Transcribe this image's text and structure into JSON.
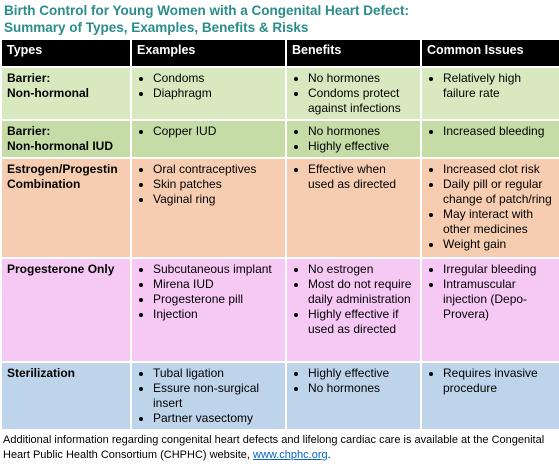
{
  "header": {
    "title": [
      "Birth Control for Young Women with a Congenital Heart Defect:",
      "Summary of Types, Examples, Benefits & Risks"
    ]
  },
  "table": {
    "columns": [
      "Types",
      "Examples",
      "Benefits",
      "Common Issues"
    ],
    "rows": [
      {
        "type": [
          "Barrier:",
          "Non-hormonal"
        ],
        "examples": [
          "Condoms",
          "Diaphragm"
        ],
        "benefits": [
          "No hormones",
          "Condoms protect against infections"
        ],
        "issues": [
          "Relatively high failure rate"
        ]
      },
      {
        "type": [
          "Barrier:",
          "Non-hormonal IUD"
        ],
        "examples": [
          "Copper IUD"
        ],
        "benefits": [
          "No hormones",
          "Highly effective"
        ],
        "issues": [
          "Increased bleeding"
        ]
      },
      {
        "type": [
          "Estrogen/Progestin",
          "Combination"
        ],
        "examples": [
          "Oral contraceptives",
          "Skin patches",
          "Vaginal ring"
        ],
        "benefits": [
          "Effective when used as directed"
        ],
        "issues": [
          "Increased clot risk",
          "Daily pill or regular change of patch/ring",
          "May interact with other medicines",
          "Weight gain"
        ]
      },
      {
        "type": [
          "Progesterone Only"
        ],
        "examples": [
          "Subcutaneous implant",
          "Mirena IUD",
          "Progesterone pill",
          "Injection"
        ],
        "benefits": [
          "No estrogen",
          "Most do not require daily administration",
          "Highly effective if used as directed"
        ],
        "issues": [
          "Irregular bleeding",
          "Intramuscular injection (Depo-Provera)"
        ]
      },
      {
        "type": [
          "Sterilization"
        ],
        "examples": [
          "Tubal ligation",
          "Essure non-surgical insert",
          "Partner vasectomy"
        ],
        "benefits": [
          "Highly effective",
          "No hormones"
        ],
        "issues": [
          "Requires invasive procedure"
        ]
      }
    ]
  },
  "footer": {
    "text": "Additional information regarding congenital heart defects and lifelong cardiac care is available at the Congenital Heart Public Health Consortium (CHPHC) website,",
    "link": "www.chphc.org",
    "end": "."
  }
}
